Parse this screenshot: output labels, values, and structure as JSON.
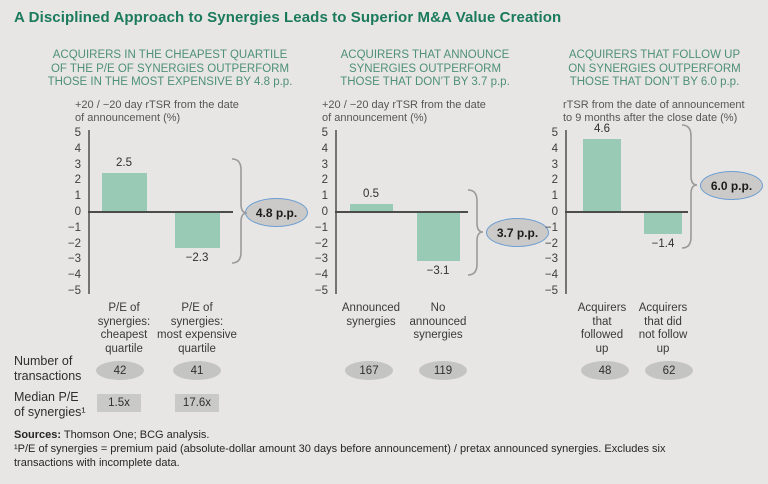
{
  "title": "A Disciplined Approach to Synergies Leads to Superior M&A Value Creation",
  "colors": {
    "background": "#e7e6e5",
    "title_green": "#1b7a5c",
    "header_green": "#4e9078",
    "bar_green": "#98cab6",
    "badge_fill": "#cbcac8",
    "badge_border_blue": "#6b9dd1",
    "count_ellipse_gray": "#c4c4c3",
    "axis_dark": "#4c4c4c"
  },
  "rows": {
    "transactions_label": "Number of\ntransactions",
    "median_label": "Median P/E\nof synergies¹"
  },
  "footer": {
    "sources_label": "Sources:",
    "sources_text": " Thomson One; BCG analysis.",
    "footnote": "¹P/E of synergies = premium paid (absolute-dollar amount 30 days before announcement) / pretax announced synergies. Excludes six\ntransactions with incomplete data."
  },
  "chart_data": [
    {
      "type": "bar",
      "header": "ACQUIRERS IN THE CHEAPEST QUARTILE\nOF THE P/E OF SYNERGIES OUTPERFORM\nTHOSE IN THE MOST EXPENSIVE BY 4.8 p.p.",
      "axis_caption": "+20 / −20 day rTSR from the date\nof announcement (%)",
      "categories": [
        "P/E of\nsynergies:\ncheapest\nquartile",
        "P/E of\nsynergies:\nmost expensive\nquartile"
      ],
      "values": [
        2.5,
        -2.3
      ],
      "value_labels": [
        "2.5",
        "−2.3"
      ],
      "badge": "4.8 p.p.",
      "ylim": [
        -5,
        5
      ],
      "y_step": 1,
      "transactions": [
        "42",
        "41"
      ],
      "median_pe": [
        "1.5x",
        "17.6x"
      ]
    },
    {
      "type": "bar",
      "header": "ACQUIRERS THAT ANNOUNCE\nSYNERGIES OUTPERFORM\nTHOSE THAT DON’T BY 3.7 p.p.",
      "axis_caption": "+20 / −20 day rTSR from the date\nof announcement (%)",
      "categories": [
        "Announced\nsynergies",
        "No\nannounced\nsynergies"
      ],
      "values": [
        0.5,
        -3.1
      ],
      "value_labels": [
        "0.5",
        "−3.1"
      ],
      "badge": "3.7 p.p.",
      "ylim": [
        -5,
        5
      ],
      "y_step": 1,
      "transactions": [
        "167",
        "119"
      ]
    },
    {
      "type": "bar",
      "header": "ACQUIRERS THAT FOLLOW UP\nON SYNERGIES OUTPERFORM\nTHOSE THAT DON’T BY 6.0 p.p.",
      "axis_caption": "rTSR from the date of announcement\nto 9 months after the close date (%)",
      "categories": [
        "Acquirers\nthat\nfollowed\nup",
        "Acquirers\nthat did\nnot follow\nup"
      ],
      "values": [
        4.6,
        -1.4
      ],
      "value_labels": [
        "4.6",
        "−1.4"
      ],
      "badge": "6.0 p.p.",
      "ylim": [
        -5,
        5
      ],
      "y_step": 1,
      "transactions": [
        "48",
        "62"
      ]
    }
  ]
}
